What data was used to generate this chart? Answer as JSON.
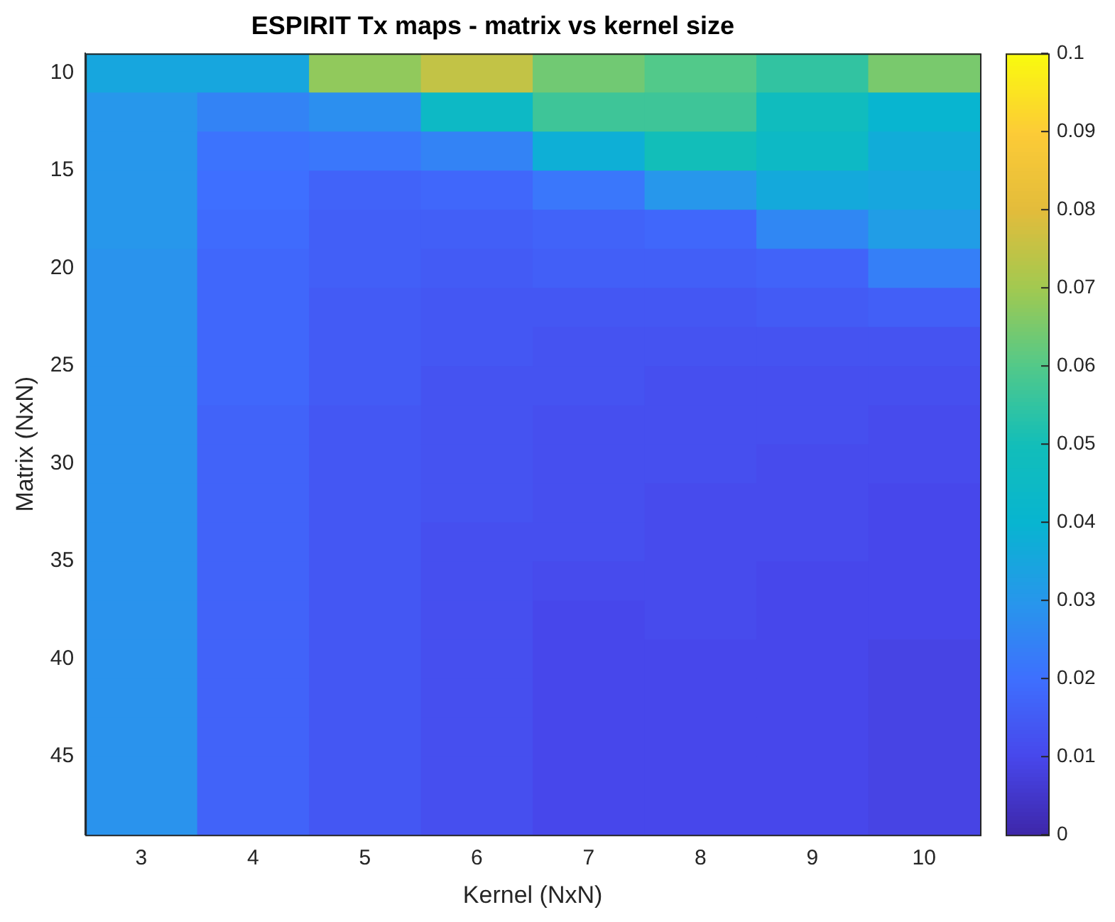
{
  "chart_data": {
    "type": "heatmap",
    "title": "ESPIRIT Tx maps - matrix vs kernel size",
    "xlabel": "Kernel (NxN)",
    "ylabel": "Matrix (NxN)",
    "categories": [
      "3",
      "4",
      "5",
      "6",
      "7",
      "8",
      "9",
      "10"
    ],
    "y": [
      10,
      12,
      14,
      16,
      18,
      20,
      22,
      24,
      26,
      28,
      30,
      32,
      34,
      36,
      38,
      40,
      42,
      44,
      46,
      48
    ],
    "ylim": [
      49,
      9
    ],
    "yticks": [
      10,
      15,
      20,
      25,
      30,
      35,
      40,
      45
    ],
    "clim": [
      0,
      0.1
    ],
    "cticks": [
      0,
      0.01,
      0.02,
      0.03,
      0.04,
      0.05,
      0.06,
      0.07,
      0.08,
      0.09,
      0.1
    ],
    "cells": [
      [
        0.035,
        0.035,
        0.068,
        0.075,
        0.064,
        0.06,
        0.055,
        0.065
      ],
      [
        0.03,
        0.025,
        0.028,
        0.045,
        0.057,
        0.057,
        0.048,
        0.04
      ],
      [
        0.03,
        0.021,
        0.022,
        0.025,
        0.038,
        0.05,
        0.045,
        0.037
      ],
      [
        0.03,
        0.02,
        0.017,
        0.018,
        0.022,
        0.03,
        0.036,
        0.035
      ],
      [
        0.03,
        0.019,
        0.016,
        0.016,
        0.017,
        0.018,
        0.026,
        0.032
      ],
      [
        0.029,
        0.018,
        0.016,
        0.015,
        0.016,
        0.016,
        0.017,
        0.024
      ],
      [
        0.029,
        0.018,
        0.015,
        0.014,
        0.014,
        0.014,
        0.015,
        0.016
      ],
      [
        0.029,
        0.018,
        0.015,
        0.014,
        0.013,
        0.013,
        0.013,
        0.013
      ],
      [
        0.029,
        0.018,
        0.015,
        0.013,
        0.013,
        0.012,
        0.012,
        0.012
      ],
      [
        0.029,
        0.017,
        0.014,
        0.013,
        0.012,
        0.012,
        0.012,
        0.011
      ],
      [
        0.029,
        0.017,
        0.014,
        0.013,
        0.012,
        0.012,
        0.011,
        0.011
      ],
      [
        0.029,
        0.017,
        0.014,
        0.013,
        0.012,
        0.011,
        0.011,
        0.01
      ],
      [
        0.029,
        0.017,
        0.014,
        0.012,
        0.012,
        0.011,
        0.011,
        0.01
      ],
      [
        0.029,
        0.017,
        0.014,
        0.012,
        0.011,
        0.011,
        0.01,
        0.01
      ],
      [
        0.029,
        0.017,
        0.014,
        0.012,
        0.01,
        0.011,
        0.01,
        0.01
      ],
      [
        0.029,
        0.017,
        0.014,
        0.012,
        0.01,
        0.01,
        0.01,
        0.009
      ],
      [
        0.029,
        0.017,
        0.014,
        0.012,
        0.01,
        0.01,
        0.01,
        0.009
      ],
      [
        0.029,
        0.017,
        0.014,
        0.012,
        0.01,
        0.01,
        0.01,
        0.009
      ],
      [
        0.029,
        0.017,
        0.014,
        0.012,
        0.01,
        0.01,
        0.01,
        0.009
      ],
      [
        0.029,
        0.017,
        0.014,
        0.012,
        0.01,
        0.01,
        0.01,
        0.009
      ]
    ]
  }
}
